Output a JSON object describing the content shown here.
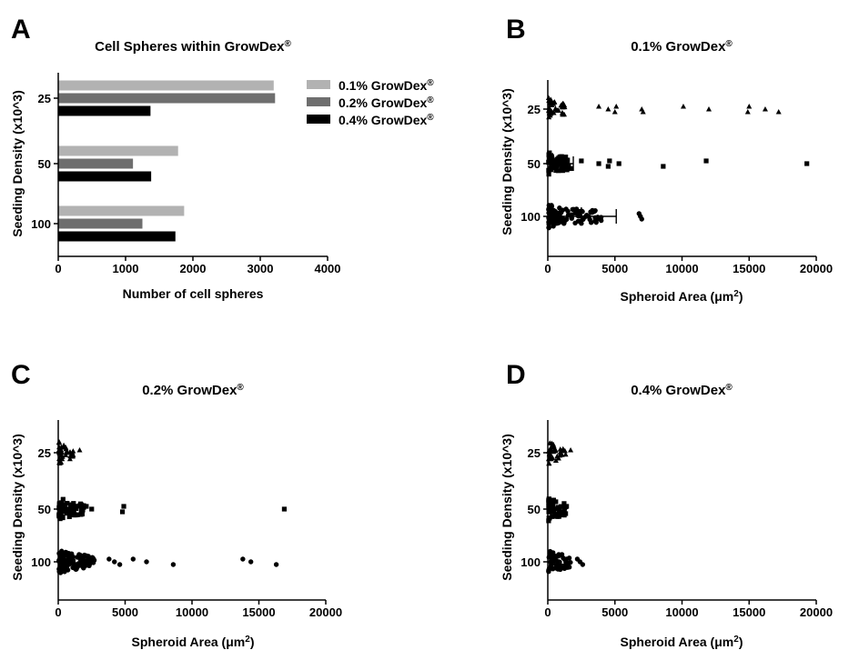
{
  "palette": {
    "light": "#b2b2b2",
    "mid": "#6e6e6e",
    "dark": "#000000"
  },
  "chart_data": [
    {
      "panel": "A",
      "type": "bar",
      "orientation": "horizontal",
      "title": "Cell Spheres within GrowDex",
      "title_sup": "®",
      "xlabel": "Number of cell spheres",
      "ylabel": "Seeding Density (x10^3)",
      "categories": [
        "25",
        "50",
        "100"
      ],
      "xlim": [
        0,
        4000
      ],
      "xticks": [
        "0",
        "1000",
        "2000",
        "3000",
        "4000"
      ],
      "legend_position": "right",
      "series": [
        {
          "name": "0.1% GrowDex",
          "sup": "®",
          "color": "#b2b2b2",
          "values": [
            3200,
            1780,
            1870
          ]
        },
        {
          "name": "0.2% GrowDex",
          "sup": "®",
          "color": "#6e6e6e",
          "values": [
            3220,
            1110,
            1250
          ]
        },
        {
          "name": "0.4% GrowDex",
          "sup": "®",
          "color": "#000000",
          "values": [
            1370,
            1380,
            1740
          ]
        }
      ]
    },
    {
      "panel": "B",
      "type": "scatter",
      "title": "0.1% GrowDex",
      "title_sup": "®",
      "xlabel": "Spheroid Area (",
      "xlabel_unit": "μm",
      "xlabel_sup": "2",
      "xlabel_end": ")",
      "ylabel": "Seeding Density (x10^3)",
      "categories": [
        "25",
        "50",
        "100"
      ],
      "xlim": [
        0,
        20000
      ],
      "xticks": [
        "0",
        "5000",
        "10000",
        "15000",
        "20000"
      ],
      "markers": [
        "triangle",
        "square",
        "circle"
      ],
      "outliers": [
        [
          3800,
          4500,
          5000,
          5100,
          7000,
          7100,
          10100,
          12000,
          14900,
          15000,
          16200,
          17200
        ],
        [
          2500,
          3800,
          4500,
          4600,
          5300,
          8600,
          11800,
          19300
        ],
        [
          6800,
          6900,
          7000
        ]
      ],
      "cluster_max": [
        1200,
        1700,
        4000
      ],
      "cluster_n": [
        40,
        60,
        110
      ],
      "errorbars": [
        {
          "row": 1,
          "mean": 900,
          "sd": 1000
        },
        {
          "row": 2,
          "mean": 2500,
          "sd": 2600
        }
      ]
    },
    {
      "panel": "C",
      "type": "scatter",
      "title": "0.2% GrowDex",
      "title_sup": "®",
      "xlabel": "Spheroid Area (",
      "xlabel_unit": "μm",
      "xlabel_sup": "2",
      "xlabel_end": ")",
      "ylabel": "Seeding Density (x10^3)",
      "categories": [
        "25",
        "50",
        "100"
      ],
      "xlim": [
        0,
        20000
      ],
      "xticks": [
        "0",
        "5000",
        "10000",
        "15000",
        "20000"
      ],
      "markers": [
        "triangle",
        "square",
        "circle"
      ],
      "outliers": [
        [
          1600
        ],
        [
          2100,
          2500,
          4800,
          4900,
          16900
        ],
        [
          3800,
          4200,
          4600,
          5600,
          6600,
          8600,
          13800,
          14400,
          16300
        ]
      ],
      "cluster_max": [
        1100,
        1900,
        2700
      ],
      "cluster_n": [
        40,
        70,
        130
      ],
      "errorbars": []
    },
    {
      "panel": "D",
      "type": "scatter",
      "title": "0.4% GrowDex",
      "title_sup": "®",
      "xlabel": "Spheroid Area (",
      "xlabel_unit": "μm",
      "xlabel_sup": "2",
      "xlabel_end": ")",
      "ylabel": "Seeding Density (x10^3)",
      "categories": [
        "25",
        "50",
        "100"
      ],
      "xlim": [
        0,
        20000
      ],
      "xticks": [
        "0",
        "5000",
        "10000",
        "15000",
        "20000"
      ],
      "markers": [
        "triangle",
        "square",
        "circle"
      ],
      "outliers": [
        [
          1700
        ],
        [
          1400
        ],
        [
          2200,
          2400,
          2600
        ]
      ],
      "cluster_max": [
        1300,
        1300,
        1700
      ],
      "cluster_n": [
        40,
        50,
        70
      ],
      "errorbars": []
    }
  ]
}
